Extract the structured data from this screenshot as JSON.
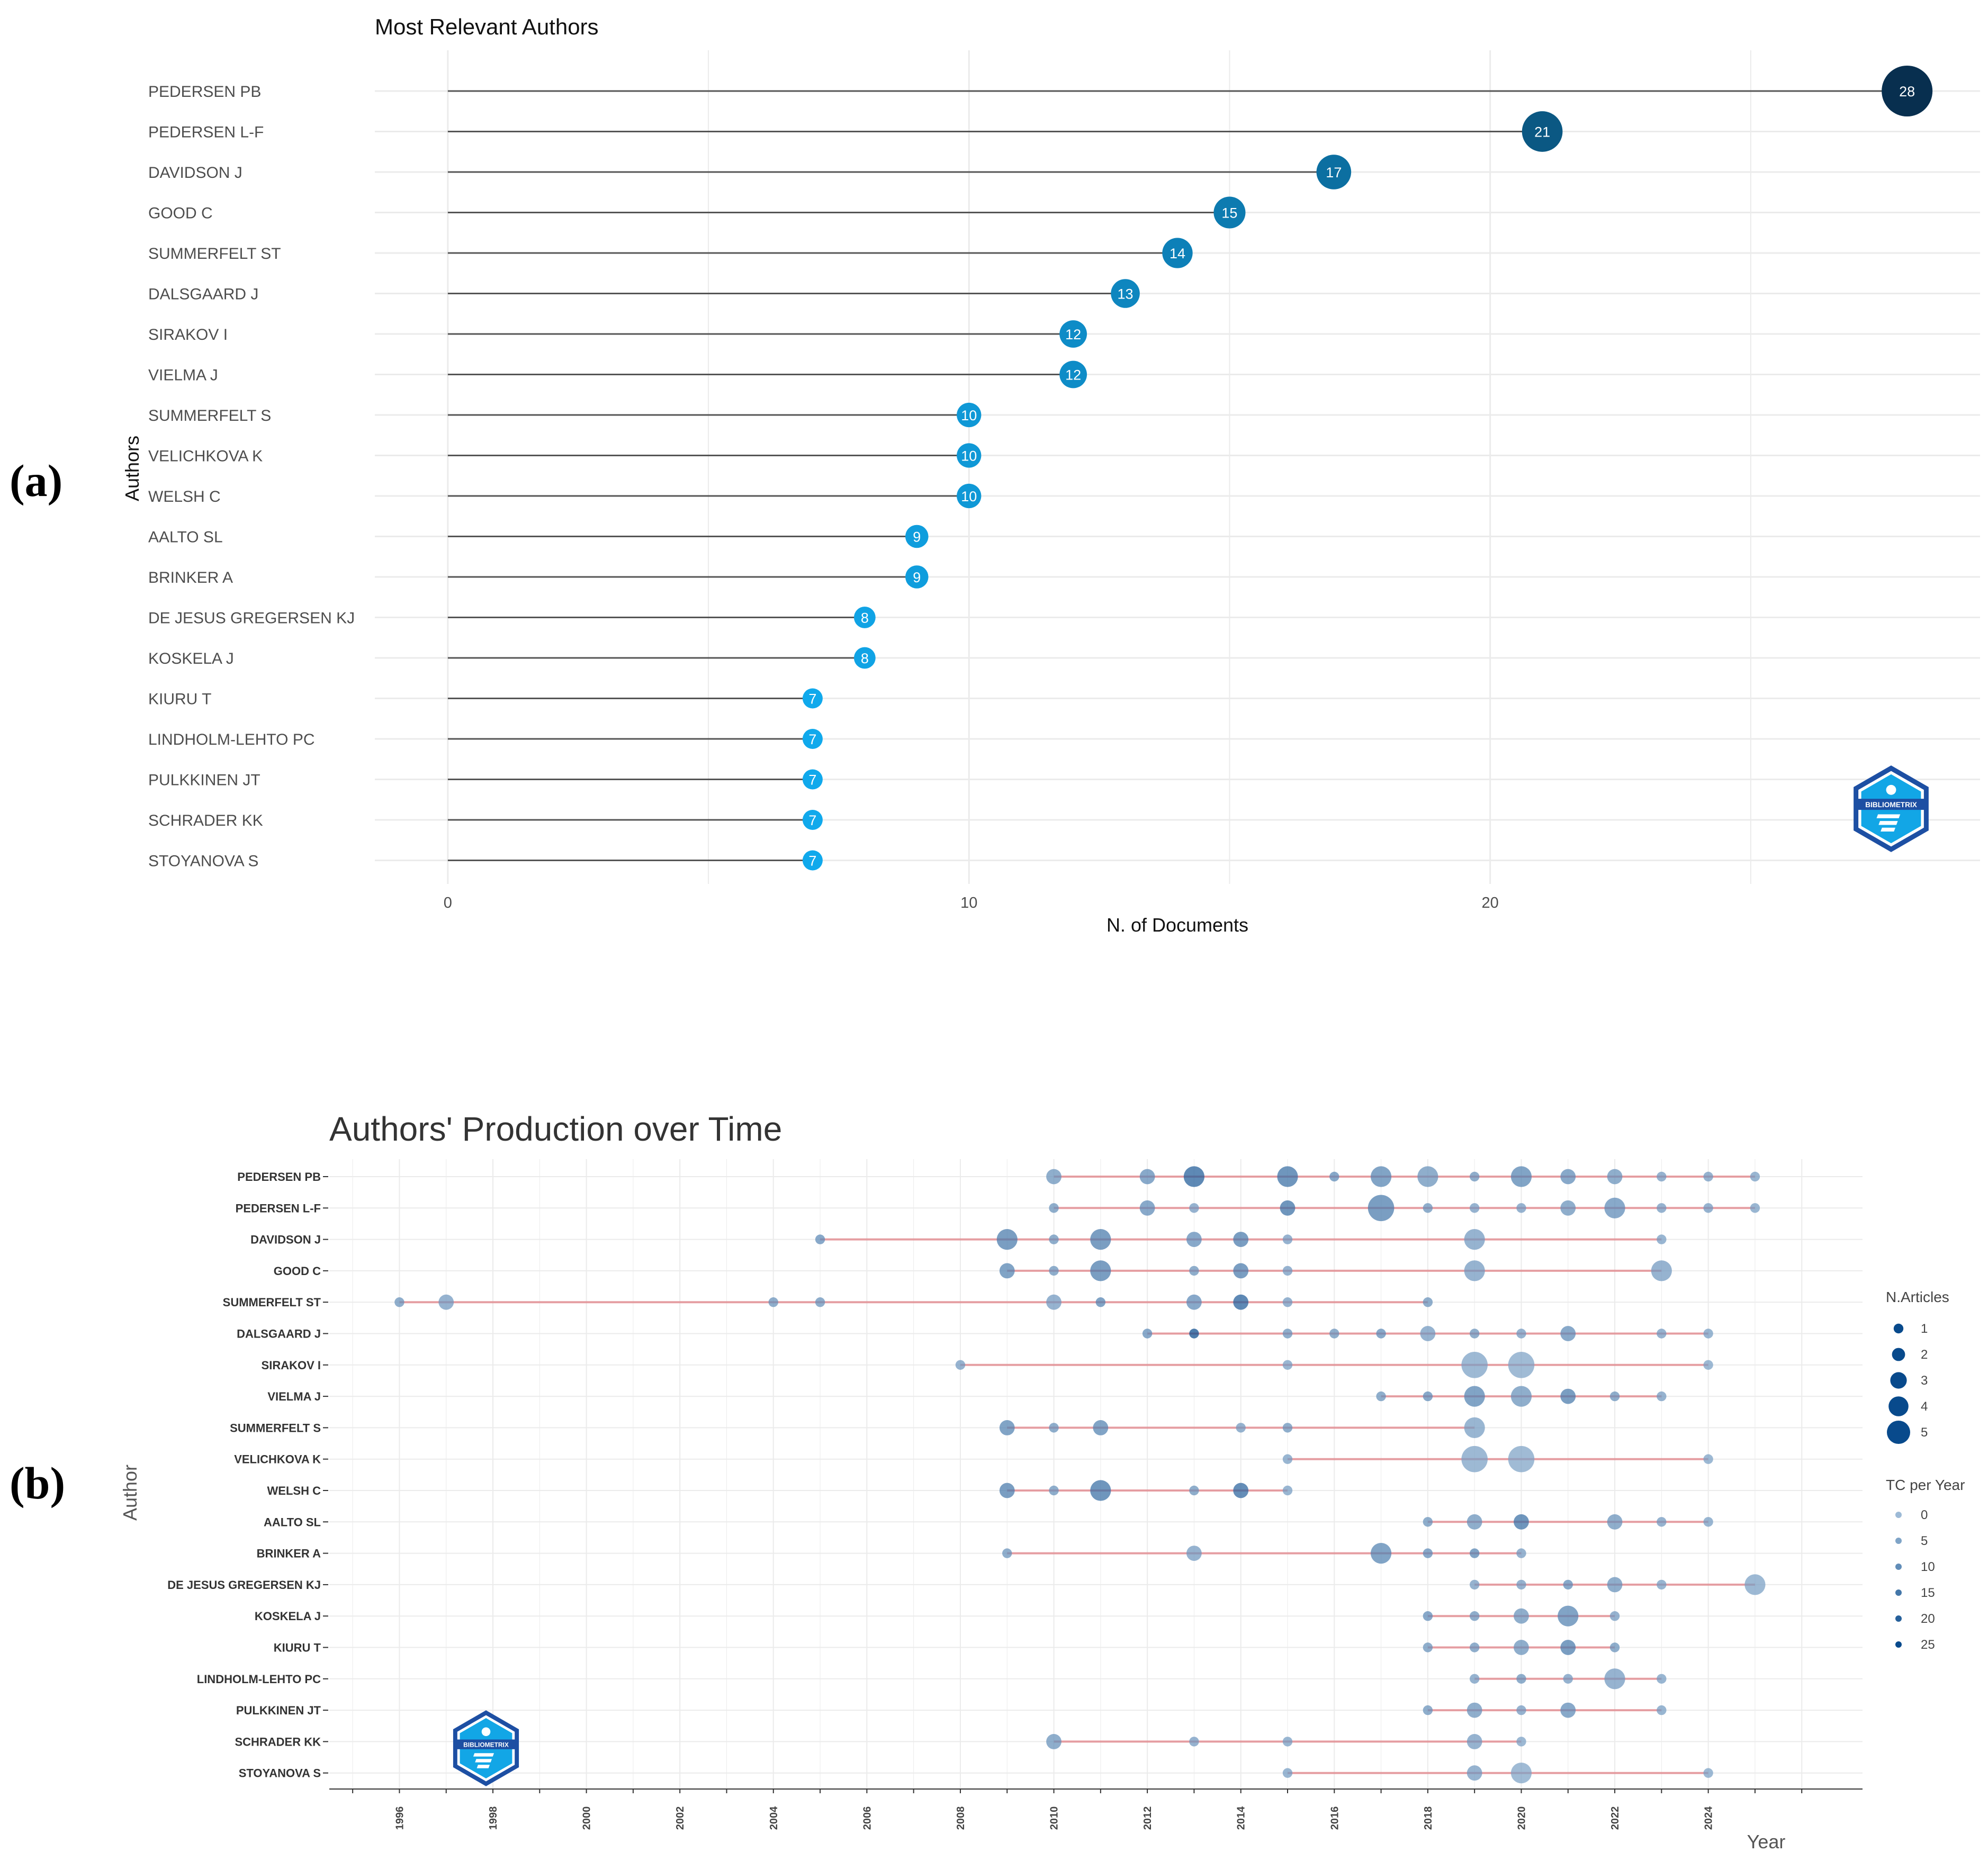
{
  "panel_labels": {
    "a": "(a)",
    "b": "(b)"
  },
  "logo_text": "BIBLIOMETRIX",
  "chart_data": [
    {
      "type": "lollipop",
      "title": "Most Relevant Authors",
      "xlabel": "N. of Documents",
      "ylabel": "Authors",
      "xlim": [
        -1.4,
        29.4
      ],
      "xticks": [
        0,
        10,
        20
      ],
      "categories": [
        "PEDERSEN PB",
        "PEDERSEN L-F",
        "DAVIDSON J",
        "GOOD C",
        "SUMMERFELT ST",
        "DALSGAARD J",
        "SIRAKOV I",
        "VIELMA J",
        "SUMMERFELT S",
        "VELICHKOVA K",
        "WELSH C",
        "AALTO SL",
        "BRINKER A",
        "DE JESUS GREGERSEN KJ",
        "KOSKELA J",
        "KIURU T",
        "LINDHOLM-LEHTO PC",
        "PULKKINEN JT",
        "SCHRADER KK",
        "STOYANOVA S"
      ],
      "values": [
        28,
        21,
        17,
        15,
        14,
        13,
        12,
        12,
        10,
        10,
        10,
        9,
        9,
        8,
        8,
        7,
        7,
        7,
        7,
        7
      ],
      "colors": {
        "low": "#10a9ec",
        "high": "#082f4f",
        "line": "#555555",
        "grid": "#ebebeb"
      }
    },
    {
      "type": "scatter-timeline",
      "title": "Authors' Production over Time",
      "xlabel": "Year",
      "ylabel": "Author",
      "xlim": [
        1994.5,
        2027.3
      ],
      "xticks": [
        1996,
        1998,
        2000,
        2002,
        2004,
        2006,
        2008,
        2010,
        2012,
        2014,
        2016,
        2018,
        2020,
        2022,
        2024
      ],
      "authors": [
        "PEDERSEN PB",
        "PEDERSEN L-F",
        "DAVIDSON J",
        "GOOD C",
        "SUMMERFELT ST",
        "DALSGAARD J",
        "SIRAKOV I",
        "VIELMA J",
        "SUMMERFELT S",
        "VELICHKOVA K",
        "WELSH C",
        "AALTO SL",
        "BRINKER A",
        "DE JESUS GREGERSEN KJ",
        "KOSKELA J",
        "KIURU T",
        "LINDHOLM-LEHTO PC",
        "PULKKINEN JT",
        "SCHRADER KK",
        "STOYANOVA S"
      ],
      "ranges": [
        [
          2010,
          2025
        ],
        [
          2010,
          2025
        ],
        [
          2005,
          2023
        ],
        [
          2009,
          2023
        ],
        [
          1996,
          2018
        ],
        [
          2012,
          2024
        ],
        [
          2008,
          2024
        ],
        [
          2017,
          2023
        ],
        [
          2009,
          2019
        ],
        [
          2015,
          2024
        ],
        [
          2009,
          2015
        ],
        [
          2018,
          2024
        ],
        [
          2009,
          2020
        ],
        [
          2019,
          2025
        ],
        [
          2018,
          2022
        ],
        [
          2018,
          2022
        ],
        [
          2019,
          2023
        ],
        [
          2018,
          2023
        ],
        [
          2010,
          2020
        ],
        [
          2015,
          2024
        ]
      ],
      "points": [
        [
          [
            2010,
            2,
            6
          ],
          [
            2012,
            2,
            8
          ],
          [
            2013,
            3,
            20
          ],
          [
            2015,
            3,
            15
          ],
          [
            2016,
            1,
            8
          ],
          [
            2017,
            3,
            10
          ],
          [
            2018,
            3,
            6
          ],
          [
            2019,
            1,
            6
          ],
          [
            2020,
            3,
            10
          ],
          [
            2021,
            2,
            8
          ],
          [
            2022,
            2,
            6
          ],
          [
            2023,
            1,
            4
          ],
          [
            2024,
            1,
            4
          ],
          [
            2025,
            1,
            3
          ]
        ],
        [
          [
            2010,
            1,
            6
          ],
          [
            2012,
            2,
            8
          ],
          [
            2013,
            1,
            4
          ],
          [
            2015,
            2,
            15
          ],
          [
            2017,
            4,
            12
          ],
          [
            2018,
            1,
            6
          ],
          [
            2019,
            1,
            4
          ],
          [
            2020,
            1,
            4
          ],
          [
            2021,
            2,
            6
          ],
          [
            2022,
            3,
            8
          ],
          [
            2023,
            1,
            4
          ],
          [
            2024,
            1,
            4
          ],
          [
            2025,
            1,
            3
          ]
        ],
        [
          [
            2005,
            1,
            8
          ],
          [
            2009,
            3,
            12
          ],
          [
            2010,
            1,
            6
          ],
          [
            2011,
            3,
            12
          ],
          [
            2013,
            2,
            8
          ],
          [
            2014,
            2,
            12
          ],
          [
            2015,
            1,
            4
          ],
          [
            2019,
            3,
            4
          ],
          [
            2023,
            1,
            3
          ]
        ],
        [
          [
            2009,
            2,
            10
          ],
          [
            2010,
            1,
            6
          ],
          [
            2011,
            3,
            12
          ],
          [
            2013,
            1,
            6
          ],
          [
            2014,
            2,
            12
          ],
          [
            2015,
            1,
            4
          ],
          [
            2019,
            3,
            4
          ],
          [
            2023,
            3,
            4
          ]
        ],
        [
          [
            1996,
            1,
            6
          ],
          [
            1997,
            2,
            4
          ],
          [
            2004,
            1,
            6
          ],
          [
            2005,
            1,
            6
          ],
          [
            2010,
            2,
            4
          ],
          [
            2011,
            1,
            10
          ],
          [
            2013,
            2,
            8
          ],
          [
            2014,
            2,
            20
          ],
          [
            2015,
            1,
            4
          ],
          [
            2018,
            1,
            6
          ]
        ],
        [
          [
            2012,
            1,
            8
          ],
          [
            2013,
            1,
            25
          ],
          [
            2015,
            1,
            6
          ],
          [
            2016,
            1,
            6
          ],
          [
            2017,
            1,
            8
          ],
          [
            2018,
            2,
            4
          ],
          [
            2019,
            1,
            6
          ],
          [
            2020,
            1,
            4
          ],
          [
            2021,
            2,
            8
          ],
          [
            2023,
            1,
            4
          ],
          [
            2024,
            1,
            3
          ]
        ],
        [
          [
            2008,
            1,
            4
          ],
          [
            2015,
            1,
            3
          ],
          [
            2019,
            4,
            2
          ],
          [
            2020,
            4,
            1
          ],
          [
            2024,
            1,
            2
          ]
        ],
        [
          [
            2017,
            1,
            6
          ],
          [
            2018,
            1,
            8
          ],
          [
            2019,
            3,
            10
          ],
          [
            2020,
            3,
            6
          ],
          [
            2021,
            2,
            12
          ],
          [
            2022,
            1,
            6
          ],
          [
            2023,
            1,
            4
          ]
        ],
        [
          [
            2009,
            2,
            10
          ],
          [
            2010,
            1,
            6
          ],
          [
            2011,
            2,
            10
          ],
          [
            2014,
            1,
            4
          ],
          [
            2015,
            1,
            6
          ],
          [
            2019,
            3,
            3
          ]
        ],
        [
          [
            2015,
            1,
            3
          ],
          [
            2019,
            4,
            2
          ],
          [
            2020,
            4,
            1
          ],
          [
            2024,
            1,
            2
          ]
        ],
        [
          [
            2009,
            2,
            12
          ],
          [
            2010,
            1,
            6
          ],
          [
            2011,
            3,
            15
          ],
          [
            2013,
            1,
            6
          ],
          [
            2014,
            2,
            18
          ],
          [
            2015,
            1,
            3
          ]
        ],
        [
          [
            2018,
            1,
            6
          ],
          [
            2019,
            2,
            6
          ],
          [
            2020,
            2,
            15
          ],
          [
            2022,
            2,
            6
          ],
          [
            2023,
            1,
            4
          ],
          [
            2024,
            1,
            3
          ]
        ],
        [
          [
            2009,
            1,
            6
          ],
          [
            2013,
            2,
            4
          ],
          [
            2017,
            3,
            10
          ],
          [
            2018,
            1,
            8
          ],
          [
            2019,
            1,
            10
          ],
          [
            2020,
            1,
            4
          ]
        ],
        [
          [
            2019,
            1,
            4
          ],
          [
            2020,
            1,
            4
          ],
          [
            2021,
            1,
            8
          ],
          [
            2022,
            2,
            6
          ],
          [
            2023,
            1,
            3
          ],
          [
            2025,
            3,
            2
          ]
        ],
        [
          [
            2018,
            1,
            8
          ],
          [
            2019,
            1,
            6
          ],
          [
            2020,
            2,
            6
          ],
          [
            2021,
            3,
            10
          ],
          [
            2022,
            1,
            4
          ]
        ],
        [
          [
            2018,
            1,
            6
          ],
          [
            2019,
            1,
            6
          ],
          [
            2020,
            2,
            6
          ],
          [
            2021,
            2,
            12
          ],
          [
            2022,
            1,
            6
          ]
        ],
        [
          [
            2019,
            1,
            4
          ],
          [
            2020,
            1,
            6
          ],
          [
            2021,
            1,
            4
          ],
          [
            2022,
            3,
            4
          ],
          [
            2023,
            1,
            3
          ]
        ],
        [
          [
            2018,
            1,
            6
          ],
          [
            2019,
            2,
            6
          ],
          [
            2020,
            1,
            4
          ],
          [
            2021,
            2,
            8
          ],
          [
            2023,
            1,
            3
          ]
        ],
        [
          [
            2010,
            2,
            6
          ],
          [
            2013,
            1,
            4
          ],
          [
            2015,
            1,
            3
          ],
          [
            2019,
            2,
            4
          ],
          [
            2020,
            1,
            2
          ]
        ],
        [
          [
            2015,
            1,
            3
          ],
          [
            2019,
            2,
            4
          ],
          [
            2020,
            3,
            1
          ],
          [
            2024,
            1,
            2
          ]
        ]
      ],
      "legend_articles": {
        "title": "N.Articles",
        "values": [
          1,
          2,
          3,
          4,
          5
        ]
      },
      "legend_tc": {
        "title": "TC per Year",
        "values": [
          0,
          5,
          10,
          15,
          20,
          25
        ]
      },
      "colors": {
        "dot_light": "#c2d6e8",
        "dot_dark": "#084a8c",
        "range_line": "#e07a80",
        "grid": "#ebebeb"
      }
    }
  ]
}
